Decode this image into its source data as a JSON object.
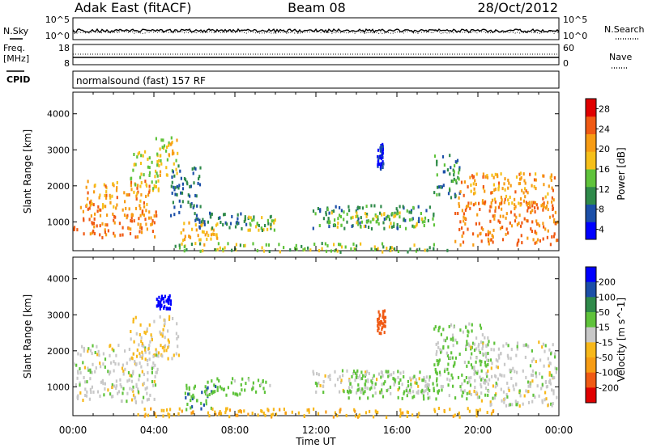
{
  "header": {
    "station": "Adak East (fitACF)",
    "beam": "Beam 08",
    "date": "28/Oct/2012"
  },
  "status_panels": {
    "nsky_label": "N.Sky",
    "nsky_ticks": [
      "10^5",
      "10^0"
    ],
    "freq_label_line1": "Freq.",
    "freq_label_line2": "[MHz]",
    "freq_ticks": [
      "18",
      "8"
    ],
    "cpid_label": "CPID",
    "cpid_text": "normalsound (fast) 157 RF",
    "nsearch_label": "N.Search",
    "nsearch_ticks": [
      "10^5",
      "10^0"
    ],
    "nave_label": "Nave",
    "nave_ticks": [
      "60",
      "0"
    ]
  },
  "colors": {
    "power_scale": [
      "#0000ff",
      "#1c4fa8",
      "#2f8a4a",
      "#5fc33b",
      "#f6c01a",
      "#f79c14",
      "#f05a14",
      "#e00000"
    ],
    "velocity_scale": [
      "#0000ff",
      "#1c4fa8",
      "#2f8a4a",
      "#5fc33b",
      "#c8c8c8",
      "#f7b81a",
      "#f79c14",
      "#f05a14",
      "#e00000"
    ],
    "ground_scatter": "#b8b8b8"
  },
  "chart_data": [
    {
      "type": "heatmap",
      "title": "Power",
      "ylabel": "Slant Range [km]",
      "xlabel": "Time UT",
      "x_ticks": [
        "00:00",
        "04:00",
        "08:00",
        "12:00",
        "16:00",
        "20:00",
        "00:00"
      ],
      "xlim_hours": [
        0,
        24
      ],
      "y_ticks": [
        1000,
        2000,
        3000,
        4000
      ],
      "ylim": [
        200,
        4600
      ],
      "colorbar_label": "Power [dB]",
      "colorbar_ticks": [
        4,
        8,
        12,
        16,
        20,
        24,
        28
      ],
      "colorbar_range": [
        2,
        30
      ],
      "blobs": [
        {
          "x0": 0.0,
          "x1": 4.1,
          "y0": 600,
          "y1": 1500,
          "level": 26
        },
        {
          "x0": 0.6,
          "x1": 3.8,
          "y0": 1400,
          "y1": 2200,
          "level": 24
        },
        {
          "x0": 2.8,
          "x1": 4.3,
          "y0": 1900,
          "y1": 3000,
          "level": 18
        },
        {
          "x0": 4.0,
          "x1": 5.2,
          "y0": 2300,
          "y1": 3500,
          "level": 20
        },
        {
          "x0": 4.8,
          "x1": 6.3,
          "y0": 1200,
          "y1": 2600,
          "level": 10
        },
        {
          "x0": 5.3,
          "x1": 7.2,
          "y0": 400,
          "y1": 1050,
          "level": 22
        },
        {
          "x0": 6.0,
          "x1": 8.6,
          "y0": 850,
          "y1": 1300,
          "level": 10
        },
        {
          "x0": 8.4,
          "x1": 10.0,
          "y0": 800,
          "y1": 1200,
          "level": 16
        },
        {
          "x0": 11.8,
          "x1": 17.8,
          "y0": 850,
          "y1": 1500,
          "level": 12
        },
        {
          "x0": 12.5,
          "x1": 17.5,
          "y0": 900,
          "y1": 1300,
          "level": 18
        },
        {
          "x0": 15.0,
          "x1": 15.3,
          "y0": 2500,
          "y1": 3200,
          "level": 6
        },
        {
          "x0": 17.8,
          "x1": 19.2,
          "y0": 1700,
          "y1": 2900,
          "level": 12
        },
        {
          "x0": 18.8,
          "x1": 23.9,
          "y0": 400,
          "y1": 1600,
          "level": 26
        },
        {
          "x0": 19.0,
          "x1": 23.8,
          "y0": 1500,
          "y1": 2400,
          "level": 24
        },
        {
          "x0": 5.0,
          "x1": 18.5,
          "y0": 200,
          "y1": 450,
          "level": 16
        }
      ]
    },
    {
      "type": "heatmap",
      "title": "Velocity",
      "ylabel": "Slant Range [km]",
      "xlabel": "Time UT",
      "x_ticks": [
        "00:00",
        "04:00",
        "08:00",
        "12:00",
        "16:00",
        "20:00",
        "00:00"
      ],
      "xlim_hours": [
        0,
        24
      ],
      "y_ticks": [
        1000,
        2000,
        3000,
        4000
      ],
      "ylim": [
        200,
        4600
      ],
      "colorbar_label": "Velocity [m s^-1]",
      "colorbar_ticks": [
        200,
        100,
        50,
        15,
        -15,
        -50,
        -100,
        -200
      ],
      "blobs": [
        {
          "x0": 0.0,
          "x1": 4.2,
          "y0": 600,
          "y1": 2200,
          "level": 0
        },
        {
          "x0": 2.8,
          "x1": 5.2,
          "y0": 1800,
          "y1": 3000,
          "level": -20
        },
        {
          "x0": 4.1,
          "x1": 4.8,
          "y0": 3200,
          "y1": 3600,
          "level": 220
        },
        {
          "x0": 5.5,
          "x1": 7.0,
          "y0": 400,
          "y1": 1100,
          "level": 45
        },
        {
          "x0": 6.5,
          "x1": 9.8,
          "y0": 800,
          "y1": 1300,
          "level": 30
        },
        {
          "x0": 11.8,
          "x1": 17.8,
          "y0": 850,
          "y1": 1500,
          "level": 0
        },
        {
          "x0": 13.5,
          "x1": 18.0,
          "y0": 700,
          "y1": 1500,
          "level": 25
        },
        {
          "x0": 15.0,
          "x1": 15.4,
          "y0": 2500,
          "y1": 3200,
          "level": -120
        },
        {
          "x0": 17.8,
          "x1": 20.5,
          "y0": 700,
          "y1": 2800,
          "level": 25
        },
        {
          "x0": 19.5,
          "x1": 23.9,
          "y0": 500,
          "y1": 2300,
          "level": 0
        },
        {
          "x0": 3.0,
          "x1": 21.0,
          "y0": 200,
          "y1": 450,
          "level": -40
        }
      ]
    }
  ]
}
